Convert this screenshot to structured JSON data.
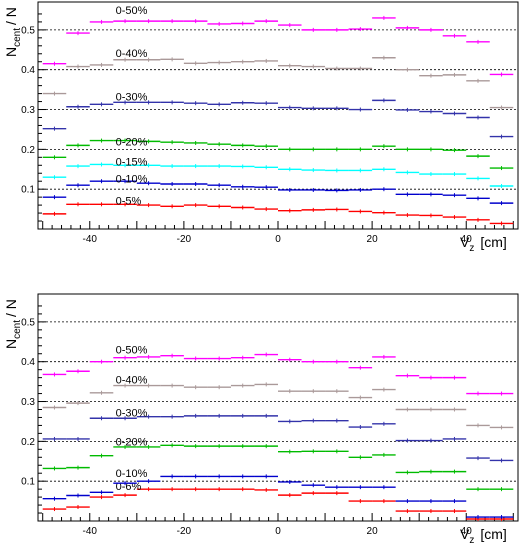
{
  "chart_data": [
    {
      "type": "scatter",
      "title": "",
      "xlabel_main": "V",
      "xlabel_sub": "z",
      "xlabel_unit": "[cm]",
      "ylabel_main": "N",
      "ylabel_sub": "cent",
      "ylabel_tail": "/ N",
      "xlim": [
        -51,
        51
      ],
      "ylim": [
        0,
        0.57
      ],
      "xticks": [
        -40,
        -20,
        0,
        20,
        40
      ],
      "yticks": [
        0.1,
        0.2,
        0.3,
        0.4,
        0.5
      ],
      "gridlines_y": [
        0.1,
        0.2,
        0.3,
        0.4,
        0.5
      ],
      "x_centers": [
        -47.5,
        -42.5,
        -37.5,
        -32.5,
        -27.5,
        -22.5,
        -17.5,
        -12.5,
        -7.5,
        -2.5,
        2.5,
        7.5,
        12.5,
        17.5,
        22.5,
        27.5,
        32.5,
        37.5,
        42.5,
        47.5
      ],
      "bin_half_width": 2.5,
      "series": [
        {
          "label": "0-5%",
          "color": "#ff0000",
          "label_x": -34.5,
          "label_y": 0.062,
          "values": [
            0.038,
            0.062,
            0.062,
            0.062,
            0.06,
            0.057,
            0.06,
            0.057,
            0.054,
            0.05,
            0.046,
            0.048,
            0.049,
            0.044,
            0.041,
            0.035,
            0.034,
            0.03,
            0.023,
            0.014
          ]
        },
        {
          "label": "0-10%",
          "color": "#0000cc",
          "label_x": -34.5,
          "label_y": 0.117,
          "values": [
            0.08,
            0.11,
            0.12,
            0.12,
            0.115,
            0.113,
            0.113,
            0.11,
            0.106,
            0.105,
            0.098,
            0.098,
            0.097,
            0.098,
            0.1,
            0.087,
            0.087,
            0.085,
            0.077,
            0.065
          ]
        },
        {
          "label": "0-15%",
          "color": "#00ffff",
          "label_x": -34.5,
          "label_y": 0.16,
          "values": [
            0.13,
            0.158,
            0.162,
            0.16,
            0.16,
            0.158,
            0.158,
            0.158,
            0.157,
            0.155,
            0.15,
            0.148,
            0.147,
            0.147,
            0.15,
            0.142,
            0.138,
            0.138,
            0.127,
            0.108
          ]
        },
        {
          "label": "0-20%",
          "color": "#00bb00",
          "label_x": -34.5,
          "label_y": 0.21,
          "values": [
            0.18,
            0.21,
            0.222,
            0.222,
            0.22,
            0.218,
            0.216,
            0.213,
            0.21,
            0.208,
            0.2,
            0.2,
            0.2,
            0.2,
            0.208,
            0.2,
            0.2,
            0.198,
            0.183,
            0.153
          ]
        },
        {
          "label": "0-30%",
          "color": "#3333aa",
          "label_x": -34.5,
          "label_y": 0.323,
          "values": [
            0.252,
            0.307,
            0.313,
            0.318,
            0.318,
            0.318,
            0.316,
            0.313,
            0.317,
            0.316,
            0.305,
            0.303,
            0.303,
            0.3,
            0.323,
            0.299,
            0.295,
            0.29,
            0.28,
            0.232
          ]
        },
        {
          "label": "0-40%",
          "color": "#aa9999",
          "label_x": -34.5,
          "label_y": 0.432,
          "values": [
            0.34,
            0.408,
            0.412,
            0.425,
            0.425,
            0.426,
            0.416,
            0.418,
            0.42,
            0.422,
            0.41,
            0.408,
            0.403,
            0.403,
            0.43,
            0.4,
            0.385,
            0.387,
            0.372,
            0.305
          ]
        },
        {
          "label": "0-50%",
          "color": "#ff00ff",
          "label_x": -34.5,
          "label_y": 0.54,
          "values": [
            0.415,
            0.492,
            0.52,
            0.522,
            0.522,
            0.522,
            0.522,
            0.515,
            0.516,
            0.522,
            0.512,
            0.5,
            0.5,
            0.502,
            0.53,
            0.505,
            0.5,
            0.485,
            0.47,
            0.388
          ]
        }
      ]
    },
    {
      "type": "scatter",
      "title": "",
      "xlabel_main": "V",
      "xlabel_sub": "z",
      "xlabel_unit": "[cm]",
      "ylabel_main": "N",
      "ylabel_sub": "cent",
      "ylabel_tail": "/ N",
      "xlim": [
        -51,
        51
      ],
      "ylim": [
        0,
        0.57
      ],
      "xticks": [
        -40,
        -20,
        0,
        20,
        40
      ],
      "yticks": [
        0.1,
        0.2,
        0.3,
        0.4,
        0.5
      ],
      "gridlines_y": [
        0.1,
        0.2,
        0.3,
        0.4,
        0.5
      ],
      "x_centers": [
        -47.5,
        -42.5,
        -37.5,
        -32.5,
        -27.5,
        -22.5,
        -17.5,
        -12.5,
        -7.5,
        -2.5,
        2.5,
        7.5,
        12.5,
        17.5,
        22.5,
        27.5,
        32.5,
        37.5,
        42.5,
        47.5
      ],
      "bin_half_width": 2.5,
      "series": [
        {
          "label": "0-6%",
          "color": "#ff0000",
          "label_x": -34.5,
          "label_y": 0.078,
          "values": [
            0.03,
            0.035,
            0.06,
            0.065,
            0.08,
            0.08,
            0.08,
            0.08,
            0.08,
            0.078,
            0.065,
            0.07,
            0.07,
            0.05,
            0.05,
            0.025,
            0.025,
            0.025,
            0.005,
            0.005
          ]
        },
        {
          "label": "0-10%",
          "color": "#0000cc",
          "label_x": -34.5,
          "label_y": 0.11,
          "values": [
            0.056,
            0.064,
            0.072,
            0.095,
            0.1,
            0.112,
            0.112,
            0.112,
            0.112,
            0.112,
            0.098,
            0.09,
            0.085,
            0.085,
            0.085,
            0.05,
            0.05,
            0.05,
            0.01,
            0.01
          ]
        },
        {
          "label": "0-20%",
          "color": "#00bb00",
          "label_x": -34.5,
          "label_y": 0.19,
          "values": [
            0.132,
            0.134,
            0.164,
            0.186,
            0.186,
            0.19,
            0.188,
            0.188,
            0.188,
            0.188,
            0.174,
            0.175,
            0.175,
            0.16,
            0.166,
            0.122,
            0.124,
            0.124,
            0.08,
            0.08
          ]
        },
        {
          "label": "0-30%",
          "color": "#3333aa",
          "label_x": -34.5,
          "label_y": 0.262,
          "values": [
            0.206,
            0.206,
            0.258,
            0.258,
            0.262,
            0.262,
            0.264,
            0.264,
            0.264,
            0.264,
            0.25,
            0.252,
            0.252,
            0.236,
            0.244,
            0.202,
            0.202,
            0.206,
            0.158,
            0.152
          ]
        },
        {
          "label": "0-40%",
          "color": "#aa9999",
          "label_x": -34.5,
          "label_y": 0.345,
          "values": [
            0.285,
            0.296,
            0.322,
            0.34,
            0.34,
            0.34,
            0.336,
            0.336,
            0.34,
            0.343,
            0.326,
            0.326,
            0.326,
            0.31,
            0.33,
            0.28,
            0.28,
            0.28,
            0.24,
            0.235
          ]
        },
        {
          "label": "0-50%",
          "color": "#ff00ff",
          "label_x": -34.5,
          "label_y": 0.42,
          "values": [
            0.368,
            0.376,
            0.4,
            0.41,
            0.412,
            0.415,
            0.408,
            0.408,
            0.41,
            0.418,
            0.405,
            0.4,
            0.4,
            0.385,
            0.412,
            0.365,
            0.36,
            0.36,
            0.32,
            0.32
          ]
        }
      ]
    }
  ]
}
